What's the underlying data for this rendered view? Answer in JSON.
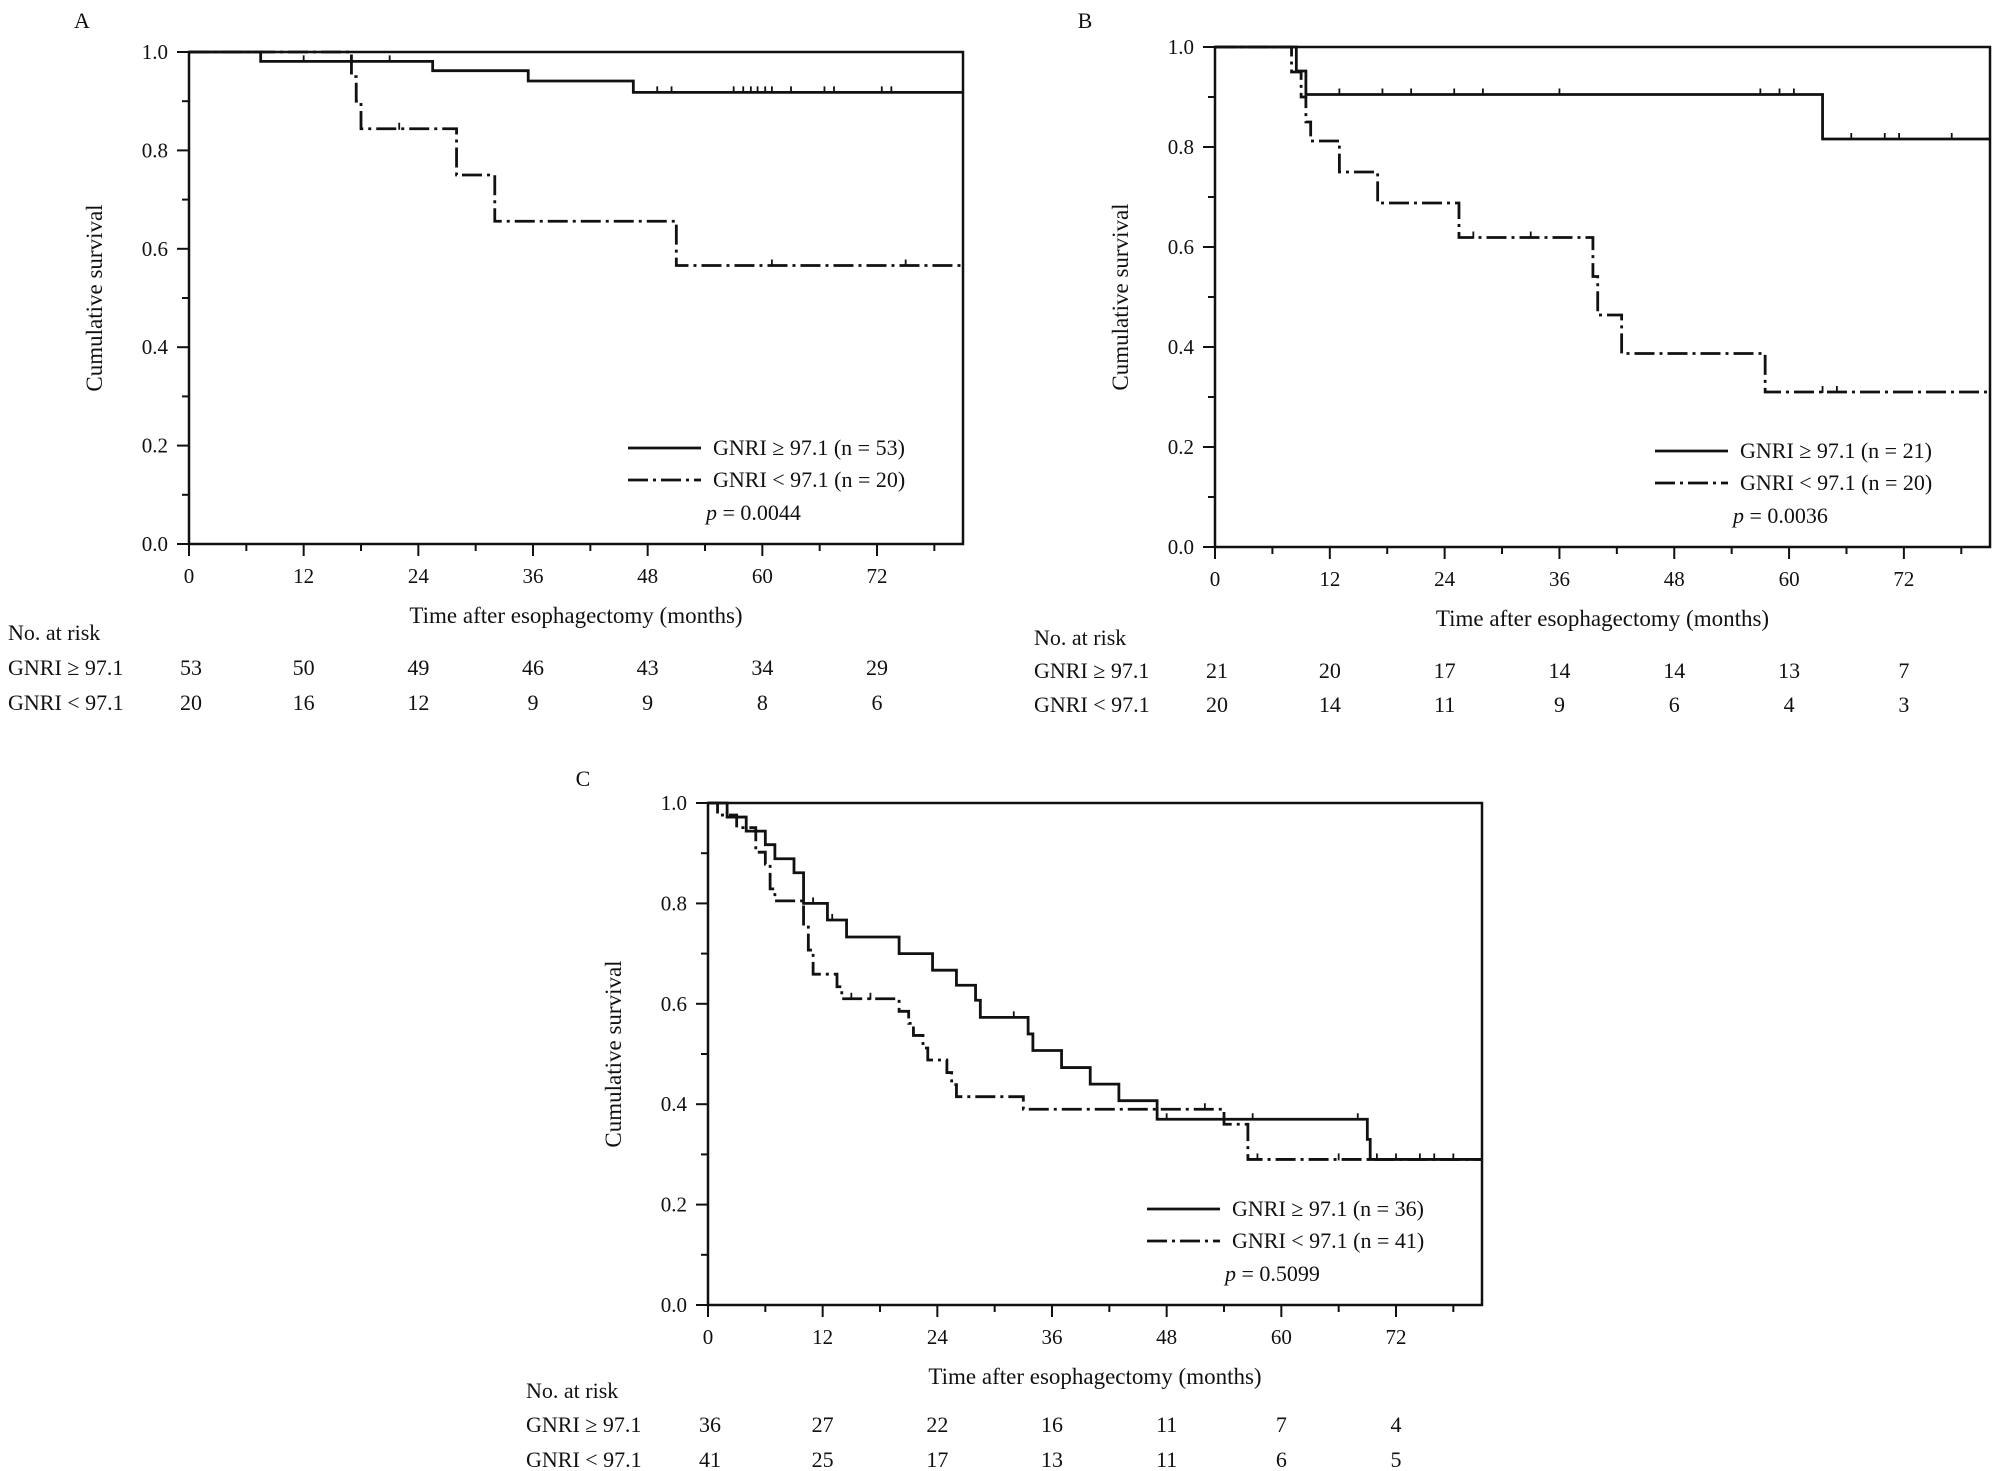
{
  "chart_data": [
    {
      "panel": "A",
      "type": "line",
      "subtype": "kaplan-meier step",
      "xlabel": "Time after esophagectomy (months)",
      "ylabel": "Cumulative survival",
      "xlim": [
        0,
        81
      ],
      "ylim": [
        0,
        1
      ],
      "xticks": [
        0,
        12,
        24,
        36,
        48,
        60,
        72
      ],
      "yticks": [
        "0.0",
        "0.2",
        "0.4",
        "0.6",
        "0.8",
        "1.0"
      ],
      "legend_placement": "bottom-right",
      "p_label": "p",
      "p_value": "= 0.0044",
      "series": [
        {
          "name": "GNRI ≥ 97.1 (n = 53)",
          "line_style": "solid",
          "steps": [
            [
              0,
              1.0
            ],
            [
              7.5,
              0.981
            ],
            [
              25.5,
              0.962
            ],
            [
              35.5,
              0.941
            ],
            [
              46.5,
              0.918
            ],
            [
              81,
              0.918
            ]
          ],
          "censored": [
            [
              12,
              0.981
            ],
            [
              17,
              0.981
            ],
            [
              21,
              0.981
            ],
            [
              49,
              0.918
            ],
            [
              50.5,
              0.918
            ],
            [
              57,
              0.918
            ],
            [
              58,
              0.918
            ],
            [
              58.8,
              0.918
            ],
            [
              59.5,
              0.918
            ],
            [
              60.3,
              0.918
            ],
            [
              61,
              0.918
            ],
            [
              63,
              0.918
            ],
            [
              66.5,
              0.918
            ],
            [
              67.5,
              0.918
            ],
            [
              72.5,
              0.918
            ],
            [
              73.5,
              0.918
            ]
          ]
        },
        {
          "name": "GNRI < 97.1 (n = 20)",
          "line_style": "dash-dot",
          "steps": [
            [
              0,
              1.0
            ],
            [
              17,
              0.95
            ],
            [
              17.5,
              0.9
            ],
            [
              18,
              0.844
            ],
            [
              28,
              0.75
            ],
            [
              32,
              0.656
            ],
            [
              51,
              0.566
            ],
            [
              81,
              0.566
            ]
          ],
          "censored": [
            [
              22,
              0.844
            ],
            [
              61,
              0.566
            ],
            [
              75,
              0.566
            ]
          ]
        }
      ],
      "at_risk": {
        "header": "No. at risk",
        "times": [
          0,
          12,
          24,
          36,
          48,
          60,
          72
        ],
        "rows": [
          {
            "label": "GNRI ≥ 97.1",
            "values": [
              "53",
              "50",
              "49",
              "46",
              "43",
              "34",
              "29"
            ]
          },
          {
            "label": "GNRI < 97.1",
            "values": [
              "20",
              "16",
              "12",
              "9",
              "9",
              "8",
              "6"
            ]
          }
        ]
      }
    },
    {
      "panel": "B",
      "type": "line",
      "subtype": "kaplan-meier step",
      "xlabel": "Time after esophagectomy (months)",
      "ylabel": "Cumulative survival",
      "xlim": [
        0,
        81
      ],
      "ylim": [
        0,
        1
      ],
      "xticks": [
        0,
        12,
        24,
        36,
        48,
        60,
        72
      ],
      "yticks": [
        "0.0",
        "0.2",
        "0.4",
        "0.6",
        "0.8",
        "1.0"
      ],
      "legend_placement": "bottom-right",
      "p_label": "p",
      "p_value": "= 0.0036",
      "series": [
        {
          "name": "GNRI ≥ 97.1 (n = 21)",
          "line_style": "solid",
          "steps": [
            [
              0,
              1.0
            ],
            [
              8.5,
              0.952
            ],
            [
              9.5,
              0.905
            ],
            [
              63.5,
              0.816
            ],
            [
              81,
              0.816
            ]
          ],
          "censored": [
            [
              13,
              0.905
            ],
            [
              17.5,
              0.905
            ],
            [
              20.5,
              0.905
            ],
            [
              25,
              0.905
            ],
            [
              28,
              0.905
            ],
            [
              36,
              0.905
            ],
            [
              57,
              0.905
            ],
            [
              59,
              0.905
            ],
            [
              60.5,
              0.905
            ],
            [
              66.5,
              0.816
            ],
            [
              70,
              0.816
            ],
            [
              71.5,
              0.816
            ],
            [
              77,
              0.816
            ]
          ]
        },
        {
          "name": "GNRI < 97.1 (n = 20)",
          "line_style": "dash-dot",
          "steps": [
            [
              0,
              1.0
            ],
            [
              8,
              0.95
            ],
            [
              9,
              0.9
            ],
            [
              9.5,
              0.85
            ],
            [
              10,
              0.812
            ],
            [
              13,
              0.75
            ],
            [
              17,
              0.688
            ],
            [
              25.5,
              0.619
            ],
            [
              39.5,
              0.541
            ],
            [
              40,
              0.464
            ],
            [
              42.5,
              0.387
            ],
            [
              57.5,
              0.31
            ],
            [
              81,
              0.31
            ]
          ],
          "censored": [
            [
              27,
              0.619
            ],
            [
              33,
              0.619
            ],
            [
              63.5,
              0.31
            ],
            [
              65,
              0.31
            ]
          ]
        }
      ],
      "at_risk": {
        "header": "No. at risk",
        "times": [
          0,
          12,
          24,
          36,
          48,
          60,
          72
        ],
        "rows": [
          {
            "label": "GNRI ≥ 97.1",
            "values": [
              "21",
              "20",
              "17",
              "14",
              "14",
              "13",
              "7"
            ]
          },
          {
            "label": "GNRI < 97.1",
            "values": [
              "20",
              "14",
              "11",
              "9",
              "6",
              "4",
              "3"
            ]
          }
        ]
      }
    },
    {
      "panel": "C",
      "type": "line",
      "subtype": "kaplan-meier step",
      "xlabel": "Time after esophagectomy (months)",
      "ylabel": "Cumulative survival",
      "xlim": [
        0,
        81
      ],
      "ylim": [
        0,
        1
      ],
      "xticks": [
        0,
        12,
        24,
        36,
        48,
        60,
        72
      ],
      "yticks": [
        "0.0",
        "0.2",
        "0.4",
        "0.6",
        "0.8",
        "1.0"
      ],
      "legend_placement": "bottom-right",
      "p_label": "p",
      "p_value": "= 0.5099",
      "series": [
        {
          "name": "GNRI ≥ 97.1 (n = 36)",
          "line_style": "solid",
          "steps": [
            [
              0,
              1.0
            ],
            [
              2,
              0.972
            ],
            [
              4,
              0.944
            ],
            [
              6,
              0.917
            ],
            [
              7,
              0.889
            ],
            [
              9,
              0.861
            ],
            [
              10,
              0.8
            ],
            [
              12.5,
              0.767
            ],
            [
              14.5,
              0.733
            ],
            [
              20,
              0.7
            ],
            [
              23.5,
              0.667
            ],
            [
              24.5,
              0.667
            ],
            [
              26,
              0.637
            ],
            [
              28,
              0.607
            ],
            [
              28.5,
              0.573
            ],
            [
              33.5,
              0.54
            ],
            [
              34,
              0.507
            ],
            [
              37,
              0.473
            ],
            [
              40,
              0.44
            ],
            [
              43,
              0.407
            ],
            [
              47,
              0.37
            ],
            [
              69,
              0.33
            ],
            [
              69.3,
              0.29
            ],
            [
              81,
              0.29
            ]
          ],
          "censored": [
            [
              11,
              0.8
            ],
            [
              13,
              0.767
            ],
            [
              32,
              0.573
            ],
            [
              48,
              0.37
            ],
            [
              57,
              0.37
            ],
            [
              68,
              0.37
            ],
            [
              72,
              0.29
            ],
            [
              74.5,
              0.29
            ],
            [
              76,
              0.29
            ],
            [
              78,
              0.29
            ]
          ]
        },
        {
          "name": "GNRI < 97.1 (n = 41)",
          "line_style": "dash-dot",
          "steps": [
            [
              0,
              1.0
            ],
            [
              1,
              0.976
            ],
            [
              3,
              0.951
            ],
            [
              5,
              0.902
            ],
            [
              6,
              0.878
            ],
            [
              6.5,
              0.829
            ],
            [
              7,
              0.805
            ],
            [
              10,
              0.756
            ],
            [
              10.5,
              0.707
            ],
            [
              11,
              0.659
            ],
            [
              13.5,
              0.634
            ],
            [
              14,
              0.61
            ],
            [
              20,
              0.585
            ],
            [
              21,
              0.561
            ],
            [
              21.5,
              0.537
            ],
            [
              22.5,
              0.512
            ],
            [
              23,
              0.488
            ],
            [
              25,
              0.463
            ],
            [
              25.5,
              0.439
            ],
            [
              26,
              0.415
            ],
            [
              33,
              0.39
            ],
            [
              54,
              0.36
            ],
            [
              56.5,
              0.29
            ],
            [
              81,
              0.29
            ]
          ],
          "censored": [
            [
              15,
              0.61
            ],
            [
              17,
              0.61
            ],
            [
              47,
              0.39
            ],
            [
              52,
              0.39
            ],
            [
              57.5,
              0.29
            ],
            [
              66,
              0.29
            ],
            [
              70,
              0.29
            ]
          ]
        }
      ],
      "at_risk": {
        "header": "No. at risk",
        "times": [
          0,
          12,
          24,
          36,
          48,
          60,
          72
        ],
        "rows": [
          {
            "label": "GNRI ≥ 97.1",
            "values": [
              "36",
              "27",
              "22",
              "16",
              "11",
              "7",
              "4"
            ]
          },
          {
            "label": "GNRI < 97.1",
            "values": [
              "41",
              "25",
              "17",
              "13",
              "11",
              "6",
              "5"
            ]
          }
        ]
      }
    }
  ]
}
